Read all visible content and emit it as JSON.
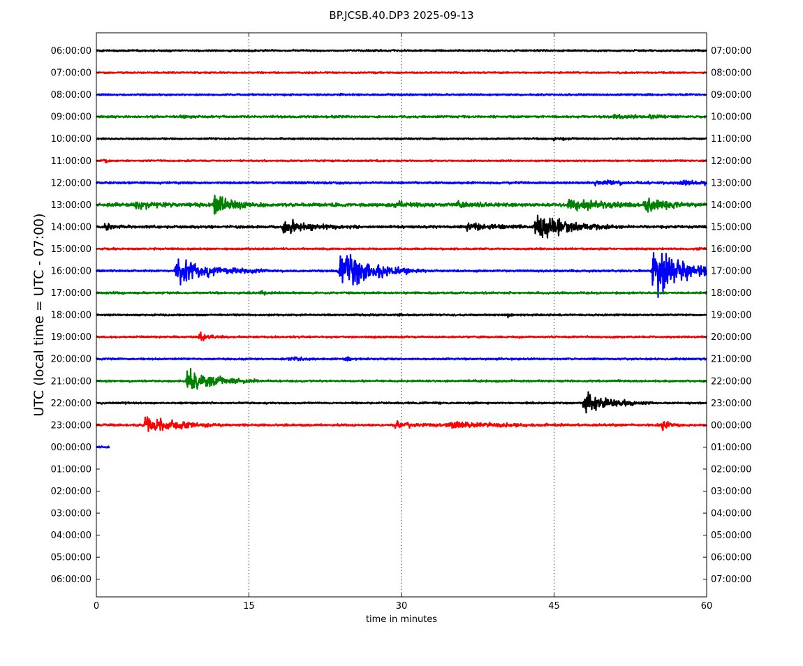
{
  "chart_data": {
    "type": "line",
    "title": "BP.JCSB.40.DP3 2025-09-13",
    "xlabel": "time in minutes",
    "ylabel": "UTC (local time = UTC - 07:00)",
    "xlim": [
      0,
      60
    ],
    "x_ticks": [
      0,
      15,
      30,
      45,
      60
    ],
    "x_tick_labels": [
      "0",
      "15",
      "30",
      "45",
      "60"
    ],
    "vertical_grid_at": [
      15,
      30,
      45
    ],
    "left_tick_labels": [
      "06:00:00",
      "07:00:00",
      "08:00:00",
      "09:00:00",
      "10:00:00",
      "11:00:00",
      "12:00:00",
      "13:00:00",
      "14:00:00",
      "15:00:00",
      "16:00:00",
      "17:00:00",
      "18:00:00",
      "19:00:00",
      "20:00:00",
      "21:00:00",
      "22:00:00",
      "23:00:00",
      "00:00:00",
      "01:00:00",
      "02:00:00",
      "03:00:00",
      "04:00:00",
      "05:00:00",
      "06:00:00"
    ],
    "right_tick_labels": [
      "07:00:00",
      "08:00:00",
      "09:00:00",
      "10:00:00",
      "11:00:00",
      "12:00:00",
      "13:00:00",
      "14:00:00",
      "15:00:00",
      "16:00:00",
      "17:00:00",
      "18:00:00",
      "19:00:00",
      "20:00:00",
      "21:00:00",
      "22:00:00",
      "23:00:00",
      "00:00:00",
      "01:00:00",
      "02:00:00",
      "03:00:00",
      "04:00:00",
      "05:00:00",
      "06:00:00",
      "07:00:00"
    ],
    "colors": [
      "#000000",
      "#ff0000",
      "#0000ff",
      "#008000"
    ],
    "trace_end_minutes": [
      60,
      60,
      60,
      60,
      60,
      60,
      60,
      60,
      60,
      60,
      60,
      60,
      60,
      60,
      60,
      60,
      60,
      60,
      1.3
    ],
    "base_noise": [
      0.1,
      0.09,
      0.1,
      0.12,
      0.09,
      0.09,
      0.12,
      0.2,
      0.15,
      0.1,
      0.11,
      0.11,
      0.1,
      0.1,
      0.1,
      0.11,
      0.1,
      0.13,
      0.12
    ],
    "events": [
      [],
      [],
      [],
      [
        {
          "t": 8.5,
          "amp": 0.2,
          "dur": 0.5
        },
        {
          "t": 51.0,
          "amp": 0.3,
          "dur": 1.5
        },
        {
          "t": 54.5,
          "amp": 0.2,
          "dur": 1.0
        }
      ],
      [
        {
          "t": 45.0,
          "amp": 0.2,
          "dur": 1.0
        }
      ],
      [
        {
          "t": 0.9,
          "amp": 0.25,
          "dur": 0.3
        }
      ],
      [
        {
          "t": 49.0,
          "amp": 0.25,
          "dur": 3.0
        },
        {
          "t": 57.5,
          "amp": 0.3,
          "dur": 1.0
        },
        {
          "t": 59.5,
          "amp": 0.3,
          "dur": 0.6
        }
      ],
      [
        {
          "t": 3.8,
          "amp": 0.4,
          "dur": 2.5
        },
        {
          "t": 11.7,
          "amp": 1.45,
          "dur": 1.5
        },
        {
          "t": 29.5,
          "amp": 0.3,
          "dur": 1.5
        },
        {
          "t": 35.5,
          "amp": 0.4,
          "dur": 1.2
        },
        {
          "t": 46.5,
          "amp": 0.6,
          "dur": 3.5
        },
        {
          "t": 54.0,
          "amp": 0.65,
          "dur": 1.5
        }
      ],
      [
        {
          "t": 0.9,
          "amp": 0.4,
          "dur": 0.8
        },
        {
          "t": 18.4,
          "amp": 0.8,
          "dur": 2.5
        },
        {
          "t": 36.5,
          "amp": 0.4,
          "dur": 3.0
        },
        {
          "t": 43.3,
          "amp": 1.8,
          "dur": 2.5
        }
      ],
      [
        {
          "t": 59.0,
          "amp": 0.2,
          "dur": 1.0
        }
      ],
      [
        {
          "t": 7.9,
          "amp": 1.7,
          "dur": 3.0
        },
        {
          "t": 24.0,
          "amp": 2.9,
          "dur": 2.8
        },
        {
          "t": 54.8,
          "amp": 3.0,
          "dur": 3.0
        }
      ],
      [
        {
          "t": 16.3,
          "amp": 0.2,
          "dur": 0.5
        }
      ],
      [
        {
          "t": 29.8,
          "amp": 0.2,
          "dur": 0.3
        },
        {
          "t": 40.5,
          "amp": 0.2,
          "dur": 0.3
        }
      ],
      [
        {
          "t": 10.2,
          "amp": 0.55,
          "dur": 0.9
        }
      ],
      [
        {
          "t": 19.0,
          "amp": 0.25,
          "dur": 1.0
        },
        {
          "t": 24.6,
          "amp": 0.2,
          "dur": 0.4
        }
      ],
      [
        {
          "t": 9.0,
          "amp": 1.5,
          "dur": 2.3
        }
      ],
      [
        {
          "t": 48.0,
          "amp": 1.3,
          "dur": 2.2
        }
      ],
      [
        {
          "t": 4.8,
          "amp": 1.15,
          "dur": 2.5
        },
        {
          "t": 29.5,
          "amp": 0.3,
          "dur": 2.0
        },
        {
          "t": 34.5,
          "amp": 0.35,
          "dur": 4.0
        },
        {
          "t": 55.7,
          "amp": 0.5,
          "dur": 0.8
        }
      ],
      []
    ]
  }
}
